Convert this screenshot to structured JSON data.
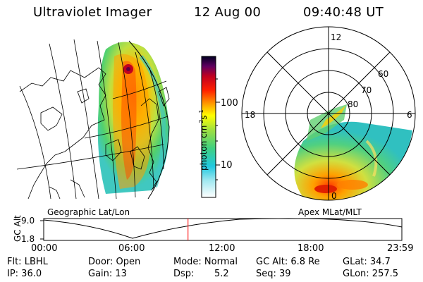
{
  "header": {
    "title": "Ultraviolet Imager",
    "date": "12 Aug 00",
    "time": "09:40:48 UT"
  },
  "left_panel": {
    "caption": "Geographic Lat/Lon"
  },
  "right_panel": {
    "caption": "Apex MLat/MLT",
    "mlt_labels": {
      "top": "12",
      "left": "18",
      "right": "6",
      "bottom": "0"
    },
    "lat_labels": [
      "60",
      "70",
      "80"
    ]
  },
  "colorbar": {
    "label": "photon cm",
    "label_sup1": "-2",
    "label_s": "s",
    "label_sup2": "-1",
    "ticks": [
      "100",
      "10"
    ],
    "scale": "log",
    "colors": [
      "#ffffff",
      "#20c8e0",
      "#40d080",
      "#a0e040",
      "#ffff00",
      "#ffa000",
      "#ff2000",
      "#a00040",
      "#000020"
    ]
  },
  "timeline": {
    "ylabel": "GC Alt",
    "ytick_top": "9.0",
    "ytick_bottom": "1.8",
    "xticks": [
      "00:00",
      "06:00",
      "12:00",
      "18:00",
      "23:59"
    ],
    "current_time_fraction": 0.403,
    "marker_color": "#ff0000"
  },
  "footer": {
    "flt": "Flt: LBHL",
    "ip": "IP: 36.0",
    "door": "Door: Open",
    "gain": "Gain: 13",
    "mode": "Mode: Normal",
    "dsp_label": "Dsp:",
    "dsp_value": "5.2",
    "gc_alt": "GC Alt: 6.8 Re",
    "seq": "Seq: 39",
    "glat": "GLat:  34.7",
    "glon": "GLon: 257.5"
  }
}
